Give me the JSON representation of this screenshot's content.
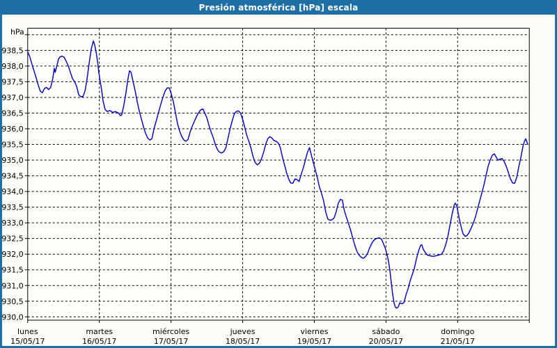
{
  "title": "Presión atmosférica [hPa] escala",
  "colors": {
    "title_bar_bg": "#1d6fa5",
    "frame_border": "#1d6fa5",
    "title_text": "#ffffff",
    "panel_bg": "#fdfdf8",
    "plot_bg": "#fffffa",
    "grid_color": "#000000",
    "axis_text": "#000000",
    "line_color": "#0a0ac8"
  },
  "chart_data": {
    "type": "line",
    "title": "Presión atmosférica [hPa] escala",
    "legend": "none",
    "grid": "dashed black, horizontal every 0.5 hPa, vertical at each day boundary",
    "y_axis": {
      "unit_label": "hPa",
      "tick_labels": [
        "938,5",
        "938,0",
        "937,5",
        "937,0",
        "936,5",
        "936,0",
        "935,5",
        "935,0",
        "934,5",
        "934,0",
        "933,5",
        "933,0",
        "932,5",
        "932,0",
        "931,5",
        "931,0",
        "930,5",
        "930,0"
      ],
      "label_max": 938.5,
      "label_min": 930.0,
      "tick_step": 0.5,
      "grid_top_value": 939.0,
      "ylim": [
        929.9,
        939.2
      ],
      "decimal_separator": "comma"
    },
    "x_axis": {
      "hours_total": 168,
      "days": [
        {
          "name": "lunes",
          "date": "15/05/17"
        },
        {
          "name": "martes",
          "date": "16/05/17"
        },
        {
          "name": "miércoles",
          "date": "17/05/17"
        },
        {
          "name": "jueves",
          "date": "18/05/17"
        },
        {
          "name": "viernes",
          "date": "19/05/17"
        },
        {
          "name": "sábado",
          "date": "20/05/17"
        },
        {
          "name": "domingo",
          "date": "21/05/17"
        }
      ]
    },
    "series": [
      {
        "name": "presión atmosférica",
        "units": "hPa",
        "points_t_hours_v_hpa": [
          [
            0,
            938.45
          ],
          [
            0.7,
            938.3
          ],
          [
            1.6,
            938
          ],
          [
            2.6,
            937.7
          ],
          [
            3.5,
            937.4
          ],
          [
            4.2,
            937.2
          ],
          [
            4.9,
            937.15
          ],
          [
            5.6,
            937.28
          ],
          [
            6.3,
            937.32
          ],
          [
            7,
            937.25
          ],
          [
            7.7,
            937.32
          ],
          [
            8.4,
            937.6
          ],
          [
            8.9,
            937.93
          ],
          [
            9.2,
            937.8
          ],
          [
            9.6,
            937.95
          ],
          [
            10.3,
            938.22
          ],
          [
            10.7,
            938.28
          ],
          [
            11.4,
            938.32
          ],
          [
            12.2,
            938.28
          ],
          [
            12.9,
            938.15
          ],
          [
            13.6,
            938
          ],
          [
            14.3,
            937.8
          ],
          [
            15,
            937.6
          ],
          [
            15.7,
            937.5
          ],
          [
            16.4,
            937.35
          ],
          [
            17.1,
            937.08
          ],
          [
            17.8,
            937.02
          ],
          [
            18.5,
            937.03
          ],
          [
            19.2,
            937.2
          ],
          [
            19.9,
            937.6
          ],
          [
            20.6,
            938.1
          ],
          [
            21.3,
            938.55
          ],
          [
            22,
            938.8
          ],
          [
            22.4,
            938.68
          ],
          [
            22.9,
            938.45
          ],
          [
            23.4,
            938.15
          ],
          [
            23.8,
            937.8
          ],
          [
            24.3,
            937.5
          ],
          [
            24.8,
            937.22
          ],
          [
            25.2,
            936.9
          ],
          [
            25.9,
            936.62
          ],
          [
            26.6,
            936.55
          ],
          [
            27.6,
            936.58
          ],
          [
            28.5,
            936.52
          ],
          [
            29.4,
            936.55
          ],
          [
            30.4,
            936.5
          ],
          [
            31.1,
            936.42
          ],
          [
            31.5,
            936.45
          ],
          [
            32.2,
            936.75
          ],
          [
            32.9,
            937.15
          ],
          [
            33.6,
            937.6
          ],
          [
            34.1,
            937.85
          ],
          [
            34.6,
            937.8
          ],
          [
            35.3,
            937.5
          ],
          [
            36,
            937.2
          ],
          [
            36.7,
            936.85
          ],
          [
            37.4,
            936.55
          ],
          [
            38.1,
            936.3
          ],
          [
            38.8,
            936.05
          ],
          [
            39.5,
            935.85
          ],
          [
            40.2,
            935.7
          ],
          [
            40.9,
            935.64
          ],
          [
            41.6,
            935.68
          ],
          [
            42.3,
            936
          ],
          [
            43.2,
            936.3
          ],
          [
            44.2,
            936.65
          ],
          [
            45.1,
            936.95
          ],
          [
            46,
            937.2
          ],
          [
            46.7,
            937.3
          ],
          [
            47.4,
            937.3
          ],
          [
            48.1,
            937.1
          ],
          [
            48.8,
            936.85
          ],
          [
            49.5,
            936.5
          ],
          [
            50.2,
            936.15
          ],
          [
            50.9,
            935.92
          ],
          [
            51.6,
            935.75
          ],
          [
            52.3,
            935.64
          ],
          [
            53,
            935.6
          ],
          [
            53.7,
            935.66
          ],
          [
            54.4,
            935.9
          ],
          [
            55.1,
            936.08
          ],
          [
            56.1,
            936.3
          ],
          [
            57,
            936.48
          ],
          [
            57.9,
            936.6
          ],
          [
            58.7,
            936.63
          ],
          [
            59.4,
            936.48
          ],
          [
            60,
            936.35
          ],
          [
            60.8,
            936.08
          ],
          [
            61.5,
            935.88
          ],
          [
            62.2,
            935.7
          ],
          [
            62.9,
            935.48
          ],
          [
            63.6,
            935.33
          ],
          [
            64.3,
            935.25
          ],
          [
            65,
            935.23
          ],
          [
            65.7,
            935.27
          ],
          [
            66.4,
            935.4
          ],
          [
            67.1,
            935.7
          ],
          [
            67.8,
            936
          ],
          [
            68.5,
            936.25
          ],
          [
            69.2,
            936.48
          ],
          [
            69.9,
            936.55
          ],
          [
            70.6,
            936.57
          ],
          [
            71.3,
            936.5
          ],
          [
            72,
            936.3
          ],
          [
            72.7,
            936.05
          ],
          [
            73.4,
            935.78
          ],
          [
            74.1,
            935.6
          ],
          [
            74.8,
            935.38
          ],
          [
            75.5,
            935.1
          ],
          [
            76.2,
            934.92
          ],
          [
            76.9,
            934.85
          ],
          [
            77.6,
            934.9
          ],
          [
            78.3,
            935.05
          ],
          [
            79,
            935.25
          ],
          [
            79.7,
            935.5
          ],
          [
            80.4,
            935.68
          ],
          [
            81.1,
            935.75
          ],
          [
            81.8,
            935.7
          ],
          [
            82.5,
            935.62
          ],
          [
            83.2,
            935.6
          ],
          [
            83.9,
            935.55
          ],
          [
            84.6,
            935.4
          ],
          [
            85.3,
            935.1
          ],
          [
            86,
            934.85
          ],
          [
            86.7,
            934.6
          ],
          [
            87.4,
            934.4
          ],
          [
            88.1,
            934.27
          ],
          [
            88.8,
            934.26
          ],
          [
            89.5,
            934.4
          ],
          [
            90.2,
            934.38
          ],
          [
            90.9,
            934.32
          ],
          [
            91.6,
            934.55
          ],
          [
            92.3,
            934.75
          ],
          [
            93,
            935
          ],
          [
            93.7,
            935.25
          ],
          [
            94.4,
            935.4
          ],
          [
            94.9,
            935.2
          ],
          [
            95.6,
            934.95
          ],
          [
            96.3,
            934.7
          ],
          [
            97,
            934.45
          ],
          [
            97.7,
            934.15
          ],
          [
            98.4,
            933.95
          ],
          [
            99.1,
            933.7
          ],
          [
            99.8,
            933.35
          ],
          [
            100.5,
            933.12
          ],
          [
            101.2,
            933.08
          ],
          [
            101.9,
            933.1
          ],
          [
            102.6,
            933.15
          ],
          [
            103.3,
            933.35
          ],
          [
            104,
            933.62
          ],
          [
            104.7,
            933.75
          ],
          [
            105.4,
            933.72
          ],
          [
            105.9,
            933.45
          ],
          [
            106.6,
            933.22
          ],
          [
            107.3,
            933.02
          ],
          [
            108.2,
            932.75
          ],
          [
            108.9,
            932.5
          ],
          [
            109.6,
            932.27
          ],
          [
            110.3,
            932.08
          ],
          [
            111,
            931.97
          ],
          [
            111.7,
            931.9
          ],
          [
            112.4,
            931.87
          ],
          [
            113.1,
            931.92
          ],
          [
            113.8,
            932.02
          ],
          [
            114.5,
            932.2
          ],
          [
            115.4,
            932.37
          ],
          [
            116.1,
            932.46
          ],
          [
            117.1,
            932.51
          ],
          [
            117.8,
            932.52
          ],
          [
            118.5,
            932.48
          ],
          [
            119.2,
            932.33
          ],
          [
            119.9,
            932.15
          ],
          [
            120.3,
            932
          ],
          [
            120.8,
            931.8
          ],
          [
            121.3,
            931.5
          ],
          [
            121.7,
            931.15
          ],
          [
            122.2,
            930.75
          ],
          [
            122.7,
            930.45
          ],
          [
            123.2,
            930.3
          ],
          [
            123.6,
            930.28
          ],
          [
            124.1,
            930.32
          ],
          [
            124.6,
            930.45
          ],
          [
            125.3,
            930.42
          ],
          [
            126,
            930.45
          ],
          [
            126.7,
            930.7
          ],
          [
            127.4,
            930.9
          ],
          [
            128.1,
            931.15
          ],
          [
            128.8,
            931.35
          ],
          [
            129.5,
            931.55
          ],
          [
            130.2,
            931.85
          ],
          [
            130.9,
            932.1
          ],
          [
            131.6,
            932.28
          ],
          [
            132,
            932.3
          ],
          [
            132.5,
            932.15
          ],
          [
            133.2,
            932.05
          ],
          [
            133.9,
            931.97
          ],
          [
            134.8,
            931.95
          ],
          [
            135.8,
            931.93
          ],
          [
            136.7,
            931.95
          ],
          [
            137.6,
            931.97
          ],
          [
            138.6,
            932
          ],
          [
            139.3,
            932.1
          ],
          [
            140,
            932.3
          ],
          [
            140.7,
            932.55
          ],
          [
            141.4,
            932.9
          ],
          [
            142.1,
            933.25
          ],
          [
            142.8,
            933.55
          ],
          [
            143.2,
            933.63
          ],
          [
            143.7,
            933.55
          ],
          [
            144.4,
            933.2
          ],
          [
            145.1,
            932.9
          ],
          [
            145.8,
            932.65
          ],
          [
            146.5,
            932.57
          ],
          [
            147.2,
            932.6
          ],
          [
            147.9,
            932.7
          ],
          [
            148.6,
            932.85
          ],
          [
            149.3,
            933
          ],
          [
            150,
            933.2
          ],
          [
            150.7,
            933.45
          ],
          [
            151.4,
            933.7
          ],
          [
            152.1,
            933.95
          ],
          [
            152.8,
            934.2
          ],
          [
            153.5,
            934.5
          ],
          [
            154.2,
            934.8
          ],
          [
            154.9,
            935
          ],
          [
            155.6,
            935.15
          ],
          [
            156.3,
            935.2
          ],
          [
            157,
            935.08
          ],
          [
            157.5,
            935
          ],
          [
            158.2,
            935.03
          ],
          [
            158.9,
            935.05
          ],
          [
            159.6,
            934.95
          ],
          [
            160.3,
            934.8
          ],
          [
            161,
            934.6
          ],
          [
            161.7,
            934.4
          ],
          [
            162.4,
            934.27
          ],
          [
            163.1,
            934.26
          ],
          [
            163.8,
            934.45
          ],
          [
            164.5,
            934.8
          ],
          [
            165.2,
            935.1
          ],
          [
            165.9,
            935.45
          ],
          [
            166.4,
            935.6
          ],
          [
            166.8,
            935.68
          ],
          [
            167.3,
            935.55
          ],
          [
            167.5,
            935.5
          ]
        ]
      }
    ]
  }
}
